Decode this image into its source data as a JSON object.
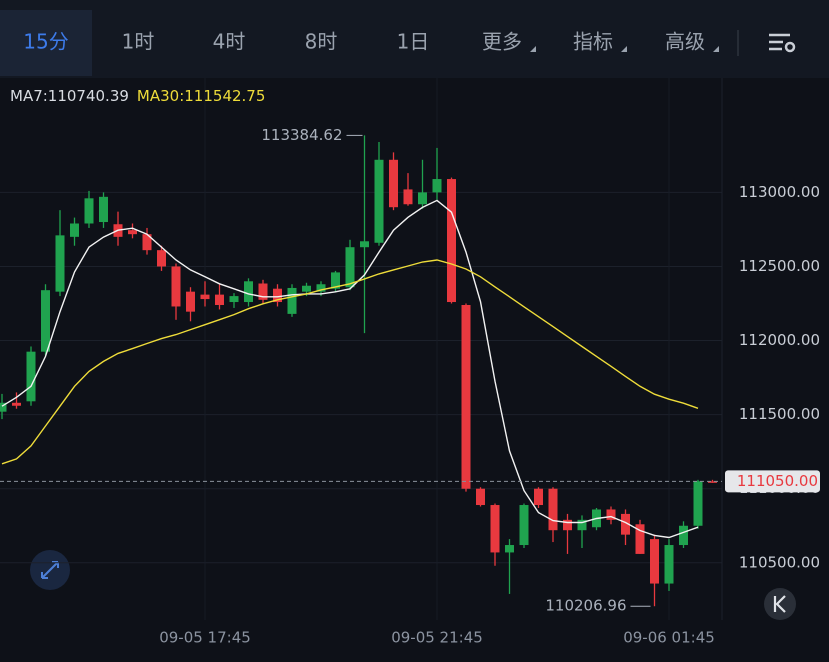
{
  "ui": {
    "tabs": [
      "15分",
      "1时",
      "4时",
      "8时",
      "1日",
      "更多",
      "指标",
      "高级"
    ]
  },
  "chart_data": {
    "type": "candlestick",
    "categories": [
      null,
      null,
      null,
      null,
      null,
      null,
      null,
      null,
      null,
      null,
      null,
      null,
      null,
      null,
      "09-05 17:45",
      null,
      null,
      null,
      null,
      null,
      null,
      null,
      null,
      null,
      null,
      null,
      null,
      null,
      null,
      null,
      "09-05 21:45",
      null,
      null,
      null,
      null,
      null,
      null,
      null,
      null,
      null,
      null,
      null,
      null,
      null,
      null,
      null,
      "09-06 01:45",
      null,
      null,
      null
    ],
    "candles": {
      "up_color": "#20a34f",
      "down_color": "#e8393f",
      "open": [
        111520,
        111580,
        111590,
        111925,
        112330,
        112700,
        112790,
        112800,
        112785,
        112745,
        112718,
        112610,
        112500,
        112330,
        112310,
        112310,
        112260,
        112260,
        112385,
        112350,
        112180,
        112330,
        112330,
        112350,
        112360,
        112630,
        112660,
        113220,
        113020,
        112920,
        113000,
        113090,
        112240,
        111000,
        110890,
        110570,
        110620,
        111000,
        111000,
        110790,
        110720,
        110740,
        110860,
        110830,
        110760,
        110660,
        110360,
        110620,
        110750,
        111050
      ],
      "high": [
        111640,
        111650,
        111960,
        112380,
        112880,
        112830,
        113010,
        113000,
        112870,
        112790,
        112760,
        112640,
        112520,
        112360,
        112400,
        112380,
        112320,
        112420,
        112410,
        112380,
        112380,
        112390,
        112400,
        112470,
        112680,
        113384.62,
        113340,
        113270,
        113130,
        113220,
        113300,
        113100,
        112250,
        111010,
        110900,
        110660,
        110900,
        111010,
        111010,
        110830,
        110820,
        110870,
        110880,
        110860,
        110790,
        110690,
        110660,
        110780,
        111060,
        111060
      ],
      "low": [
        111470,
        111540,
        111560,
        111900,
        112300,
        112640,
        112760,
        112760,
        112640,
        112690,
        112580,
        112470,
        112140,
        112130,
        112230,
        112210,
        112220,
        112230,
        112250,
        112230,
        112160,
        112300,
        112300,
        112330,
        112340,
        112050,
        112640,
        112880,
        112910,
        112890,
        112950,
        112250,
        110980,
        110880,
        110480,
        110290,
        110600,
        110870,
        110640,
        110560,
        110600,
        110720,
        110760,
        110620,
        110560,
        110206.96,
        110310,
        110600,
        110730,
        111040
      ],
      "close": [
        111580,
        111560,
        111925,
        112340,
        112710,
        112790,
        112960,
        112970,
        112700,
        112718,
        112610,
        112500,
        112230,
        112195,
        112280,
        112240,
        112300,
        112400,
        112275,
        112260,
        112355,
        112370,
        112380,
        112460,
        112630,
        112670,
        113220,
        112900,
        112920,
        113000,
        113090,
        112260,
        111000,
        110890,
        110570,
        110620,
        110890,
        110890,
        110720,
        110720,
        110790,
        110860,
        110790,
        110690,
        110560,
        110360,
        110620,
        110750,
        111050,
        111050
      ]
    },
    "series": [
      {
        "name": "MA7:110740.39",
        "color": "#f2f2f2",
        "values": [
          111557,
          111617,
          111691,
          111893,
          112195,
          112463,
          112631,
          112698,
          112745,
          112758,
          112718,
          112631,
          112544,
          112477,
          112430,
          112383,
          112349,
          112315,
          112295,
          112295,
          112309,
          112315,
          112315,
          112329,
          112349,
          112443,
          112597,
          112745,
          112832,
          112899,
          112946,
          112866,
          112597,
          112262,
          111725,
          111255,
          110987,
          110839,
          110785,
          110772,
          110772,
          110799,
          110812,
          110772,
          110718,
          110685,
          110671,
          110705,
          110740.39,
          null
        ]
      },
      {
        "name": "MA30:111542.75",
        "color": "#eedc3a",
        "values": [
          111168,
          111201,
          111289,
          111423,
          111557,
          111691,
          111792,
          111859,
          111913,
          111946,
          111980,
          112013,
          112040,
          112074,
          112107,
          112141,
          112175,
          112215,
          112248,
          112275,
          112295,
          112315,
          112342,
          112362,
          112383,
          112416,
          112450,
          112477,
          112503,
          112530,
          112544,
          112517,
          112483,
          112430,
          112362,
          112295,
          112228,
          112161,
          112094,
          112027,
          111960,
          111893,
          111826,
          111758,
          111691,
          111638,
          111604,
          111577,
          111542.75,
          null
        ]
      }
    ],
    "ylim": [
      110114,
      113772
    ],
    "yticks": [
      {
        "value": 110500,
        "label": "110500.00"
      },
      {
        "value": 111000,
        "label": "111000.00"
      },
      {
        "value": 111500,
        "label": "111500.00"
      },
      {
        "value": 112000,
        "label": "112000.00"
      },
      {
        "value": 112500,
        "label": "112500.00"
      },
      {
        "value": 113000,
        "label": "113000.00"
      }
    ],
    "last_price": {
      "value": 111050,
      "label": "111050.00"
    }
  }
}
